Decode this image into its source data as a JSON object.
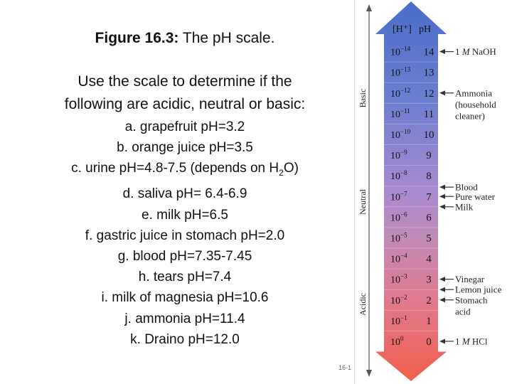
{
  "title": {
    "bold": "Figure 16.3:",
    "rest": " The pH scale."
  },
  "prompt": [
    "Use the scale to determine if the",
    "following are acidic, neutral or basic:"
  ],
  "items": [
    {
      "text": "a. grapefruit  pH=3.2"
    },
    {
      "text": "b. orange juice pH=3.5"
    },
    {
      "pre": "c. urine pH=4.8-7.5 (depends on H",
      "sub": "2",
      "post": "O)"
    },
    {
      "text": "d. saliva pH= 6.4-6.9"
    },
    {
      "text": "e. milk pH=6.5"
    },
    {
      "text": "f. gastric juice in stomach pH=2.0"
    },
    {
      "text": "g. blood pH=7.35-7.45"
    },
    {
      "text": "h. tears pH=7.4"
    },
    {
      "text": "i. milk of magnesia pH=10.6"
    },
    {
      "text": "j. ammonia pH=11.4"
    },
    {
      "text": "k. Draino pH=12.0"
    }
  ],
  "slide_number": "16-1",
  "scale": {
    "header_h": "[H⁺]",
    "header_ph": "pH",
    "rows": [
      {
        "exp": "−14",
        "ph": "14"
      },
      {
        "exp": "−13",
        "ph": "13"
      },
      {
        "exp": "−12",
        "ph": "12"
      },
      {
        "exp": "−11",
        "ph": "11"
      },
      {
        "exp": "−10",
        "ph": "10"
      },
      {
        "exp": "−9",
        "ph": "9"
      },
      {
        "exp": "−8",
        "ph": "8"
      },
      {
        "exp": "−7",
        "ph": "7"
      },
      {
        "exp": "−6",
        "ph": "6"
      },
      {
        "exp": "−5",
        "ph": "5"
      },
      {
        "exp": "−4",
        "ph": "4"
      },
      {
        "exp": "−3",
        "ph": "3"
      },
      {
        "exp": "−2",
        "ph": "2"
      },
      {
        "exp": "−1",
        "ph": "1"
      },
      {
        "exp": "0",
        "ph": "0"
      }
    ],
    "side_labels": {
      "basic": "Basic",
      "neutral": "Neutral",
      "acidic": "Acidic"
    },
    "annotations": [
      {
        "ph": 14,
        "lines": [
          "1 M NaOH"
        ],
        "italic_m": true
      },
      {
        "ph": 12,
        "lines": [
          "Ammonia",
          "(household",
          "cleaner)"
        ]
      },
      {
        "ph": 7.45,
        "lines": [
          "Blood"
        ]
      },
      {
        "ph": 7,
        "lines": [
          "Pure water"
        ]
      },
      {
        "ph": 6.5,
        "lines": [
          "Milk"
        ]
      },
      {
        "ph": 3,
        "lines": [
          "Vinegar"
        ]
      },
      {
        "ph": 2.5,
        "lines": [
          "Lemon juice"
        ]
      },
      {
        "ph": 2,
        "lines": [
          "Stomach",
          "acid"
        ]
      },
      {
        "ph": 0,
        "lines": [
          "1 M HCl"
        ],
        "italic_m": true
      }
    ],
    "colors": {
      "basic": "#4a6ec8",
      "neutral": "#b082be",
      "acidic": "#f05f4c"
    }
  }
}
